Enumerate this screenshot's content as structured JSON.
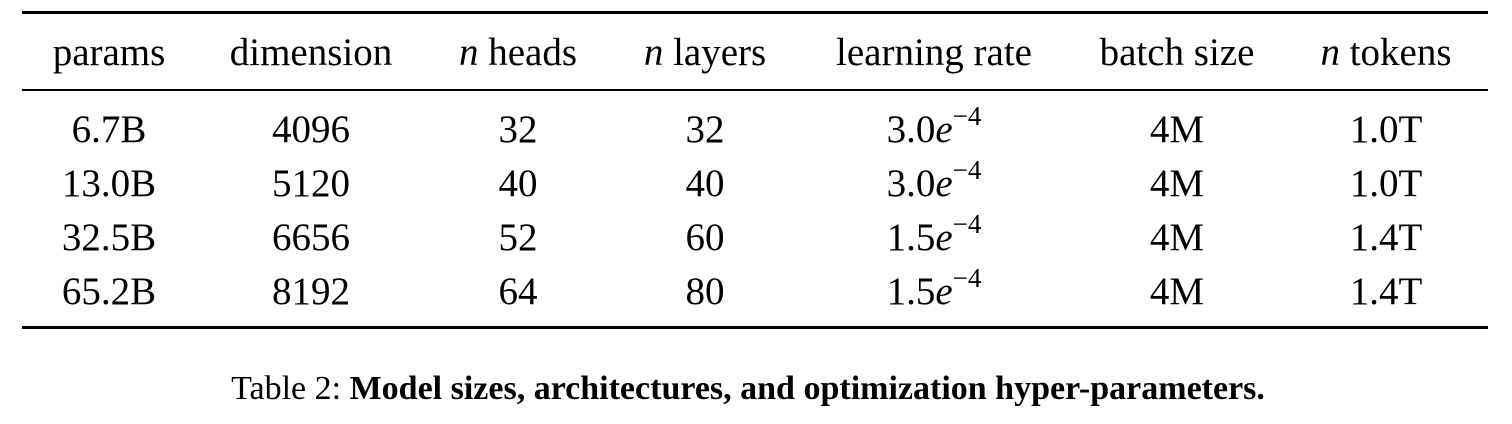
{
  "table": {
    "headers": [
      {
        "var": "",
        "text": "params"
      },
      {
        "var": "",
        "text": "dimension"
      },
      {
        "var": "n",
        "text": "heads"
      },
      {
        "var": "n",
        "text": "layers"
      },
      {
        "var": "",
        "text": "learning rate"
      },
      {
        "var": "",
        "text": "batch size"
      },
      {
        "var": "n",
        "text": "tokens"
      }
    ],
    "rows": [
      {
        "params": "6.7B",
        "dimension": "4096",
        "heads": "32",
        "layers": "32",
        "lr_mantissa": "3.0",
        "lr_base": "e",
        "lr_exp": "−4",
        "batch": "4M",
        "tokens": "1.0T"
      },
      {
        "params": "13.0B",
        "dimension": "5120",
        "heads": "40",
        "layers": "40",
        "lr_mantissa": "3.0",
        "lr_base": "e",
        "lr_exp": "−4",
        "batch": "4M",
        "tokens": "1.0T"
      },
      {
        "params": "32.5B",
        "dimension": "6656",
        "heads": "52",
        "layers": "60",
        "lr_mantissa": "1.5",
        "lr_base": "e",
        "lr_exp": "−4",
        "batch": "4M",
        "tokens": "1.4T"
      },
      {
        "params": "65.2B",
        "dimension": "8192",
        "heads": "64",
        "layers": "80",
        "lr_mantissa": "1.5",
        "lr_base": "e",
        "lr_exp": "−4",
        "batch": "4M",
        "tokens": "1.4T"
      }
    ]
  },
  "caption": {
    "label": "Table 2:",
    "text": "Model sizes, architectures, and optimization hyper-parameters."
  }
}
